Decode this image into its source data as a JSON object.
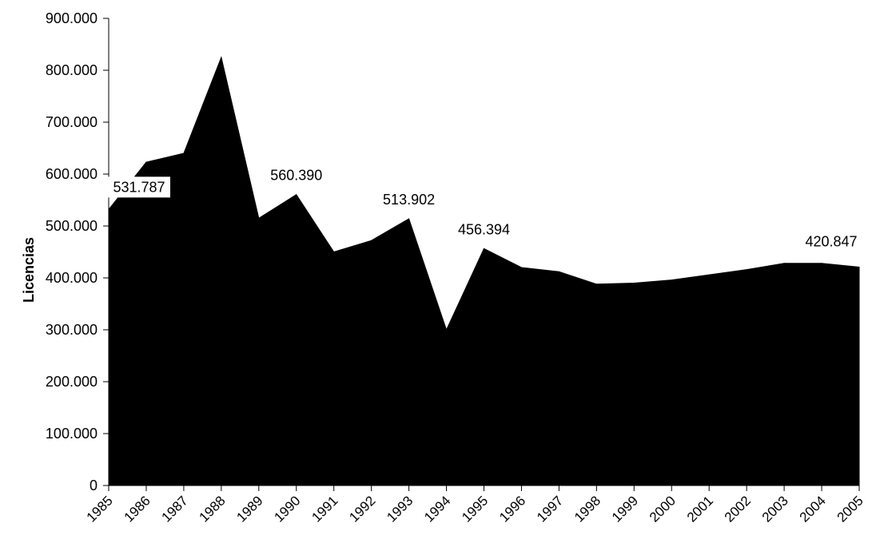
{
  "chart_data": {
    "type": "area",
    "title": "",
    "xlabel": "",
    "ylabel": "Licencias",
    "ylim": [
      0,
      900000
    ],
    "yticks": [
      0,
      100000,
      200000,
      300000,
      400000,
      500000,
      600000,
      700000,
      800000,
      900000
    ],
    "ytick_labels": [
      "0",
      "100.000",
      "200.000",
      "300.000",
      "400.000",
      "500.000",
      "600.000",
      "700.000",
      "800.000",
      "900.000"
    ],
    "categories": [
      "1985",
      "1986",
      "1987",
      "1988",
      "1989",
      "1990",
      "1991",
      "1992",
      "1993",
      "1994",
      "1995",
      "1996",
      "1997",
      "1998",
      "1999",
      "2000",
      "2001",
      "2002",
      "2003",
      "2004",
      "2005"
    ],
    "series": [
      {
        "values": [
          531787,
          623000,
          640000,
          825000,
          515000,
          560390,
          450000,
          472000,
          513902,
          300000,
          456394,
          420000,
          412000,
          388000,
          390000,
          396000,
          406000,
          416000,
          428000,
          428000,
          420847
        ],
        "color": "#000000"
      }
    ],
    "data_labels": [
      {
        "index": 0,
        "text": "531.787",
        "boxed": true
      },
      {
        "index": 5,
        "text": "560.390",
        "boxed": false
      },
      {
        "index": 8,
        "text": "513.902",
        "boxed": false
      },
      {
        "index": 10,
        "text": "456.394",
        "boxed": false
      },
      {
        "index": 20,
        "text": "420.847",
        "boxed": true
      }
    ],
    "grid": false,
    "legend": "none",
    "x_tick_rotation": -45
  }
}
